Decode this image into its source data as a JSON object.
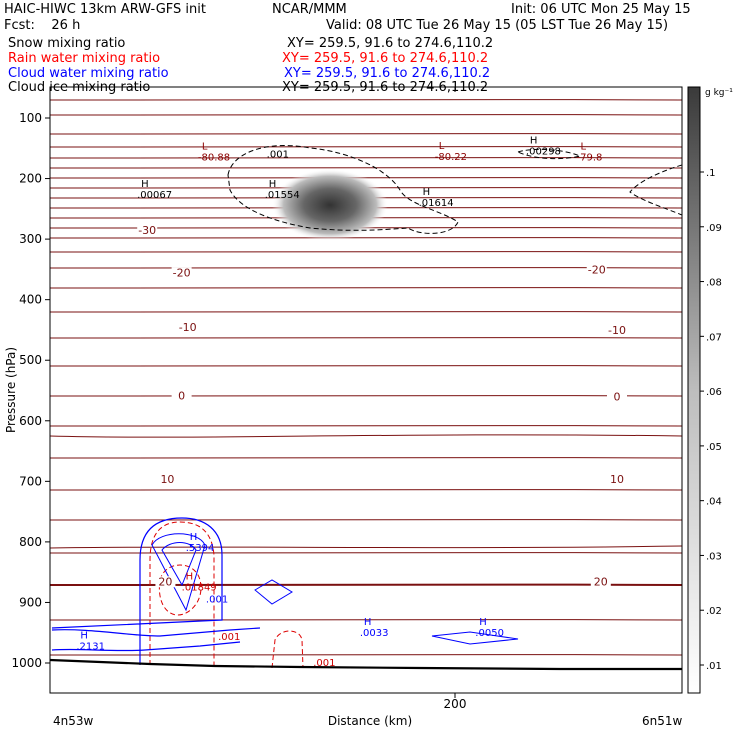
{
  "header": {
    "title_left": "HAIC-HIWC 13km ARW-GFS init",
    "org": "NCAR/MMM",
    "init": "Init: 06 UTC Mon 25 May 15",
    "fcst": "Fcst:    26 h",
    "valid": "Valid: 08 UTC Tue 26 May 15 (05 LST Tue 26 May 15)",
    "fields": [
      {
        "name": "Snow mixing ratio",
        "xy": "XY= 259.5, 91.6 to 274.6,110.2",
        "color": "#000000"
      },
      {
        "name": "Rain water mixing ratio",
        "xy": "XY= 259.5, 91.6 to 274.6,110.2",
        "color": "#ff0000"
      },
      {
        "name": "Cloud water mixing ratio",
        "xy": "XY= 259.5, 91.6 to 274.6,110.2",
        "color": "#0000ff"
      },
      {
        "name": "Cloud ice mixing ratio",
        "xy": "XY= 259.5, 91.6 to 274.6,110.2",
        "color": "#000000"
      }
    ]
  },
  "chart_data": {
    "type": "cross-section",
    "xlabel": "Distance (km)",
    "ylabel": "Pressure (hPa)",
    "x_ticks": [
      {
        "value": 200,
        "label": "200"
      }
    ],
    "x_end_labels": {
      "left": "4n53w",
      "right": "6n51w"
    },
    "xlim": [
      0,
      300
    ],
    "ylim": [
      1050,
      50
    ],
    "y_ticks": [
      100,
      200,
      300,
      400,
      500,
      600,
      700,
      800,
      900,
      1000
    ],
    "colorbar": {
      "unit": "g kg⁻¹",
      "labels": [
        ".01",
        ".02",
        ".03",
        ".04",
        ".05",
        ".06",
        ".07",
        ".08",
        ".09",
        ".1",
        ".1"
      ]
    },
    "temperature_labels": [
      {
        "x": 48,
        "p": 290,
        "t": "-30"
      },
      {
        "x": 65,
        "p": 360,
        "t": "-20"
      },
      {
        "x": 270,
        "p": 355,
        "t": "-20"
      },
      {
        "x": 68,
        "p": 450,
        "t": "-10"
      },
      {
        "x": 280,
        "p": 455,
        "t": "-10"
      },
      {
        "x": 65,
        "p": 563,
        "t": "0"
      },
      {
        "x": 280,
        "p": 565,
        "t": "0"
      },
      {
        "x": 58,
        "p": 701,
        "t": "10"
      },
      {
        "x": 280,
        "p": 701,
        "t": "10"
      },
      {
        "x": 57,
        "p": 870,
        "t": "20"
      },
      {
        "x": 272,
        "p": 870,
        "t": "20"
      }
    ],
    "extrema": [
      {
        "x": 75,
        "p": 170,
        "mark": "L",
        "value": "-80.88",
        "color": "#8b0000"
      },
      {
        "x": 192,
        "p": 169,
        "mark": "L",
        "value": "-80.22",
        "color": "#8b0000"
      },
      {
        "x": 262,
        "p": 170,
        "mark": "L",
        "value": "-79.8",
        "color": "#8b0000"
      },
      {
        "x": 237,
        "p": 160,
        "mark": "H",
        "value": ".00298",
        "color": "#000000"
      },
      {
        "x": 108,
        "p": 232,
        "mark": "H",
        "value": ".01554",
        "color": "#000000"
      },
      {
        "x": 184,
        "p": 245,
        "mark": "H",
        "value": ".01614",
        "color": "#000000"
      },
      {
        "x": 45,
        "p": 232,
        "mark": "H",
        "value": ".00067",
        "color": "#000000"
      },
      {
        "x": 69,
        "p": 815,
        "mark": "H",
        "value": ".5394",
        "color": "#0000ff"
      },
      {
        "x": 67,
        "p": 880,
        "mark": "H",
        "value": ".01849",
        "color": "#cc0000"
      },
      {
        "x": 155,
        "p": 955,
        "mark": "H",
        "value": ".0033",
        "color": "#0000ff"
      },
      {
        "x": 212,
        "p": 955,
        "mark": "H",
        "value": ".0050",
        "color": "#0000ff"
      },
      {
        "x": 15,
        "p": 978,
        "mark": "H",
        "value": ".2131",
        "color": "#0000ff"
      }
    ],
    "contour_labels": [
      {
        "x": 107,
        "p": 165,
        "t": ".001",
        "color": "#000000"
      },
      {
        "x": 77,
        "p": 900,
        "t": ".001",
        "color": "#0000ff"
      },
      {
        "x": 83,
        "p": 962,
        "t": ".001",
        "color": "#cc0000"
      },
      {
        "x": 130,
        "p": 1005,
        "t": ".001",
        "color": "#cc0000"
      }
    ]
  }
}
